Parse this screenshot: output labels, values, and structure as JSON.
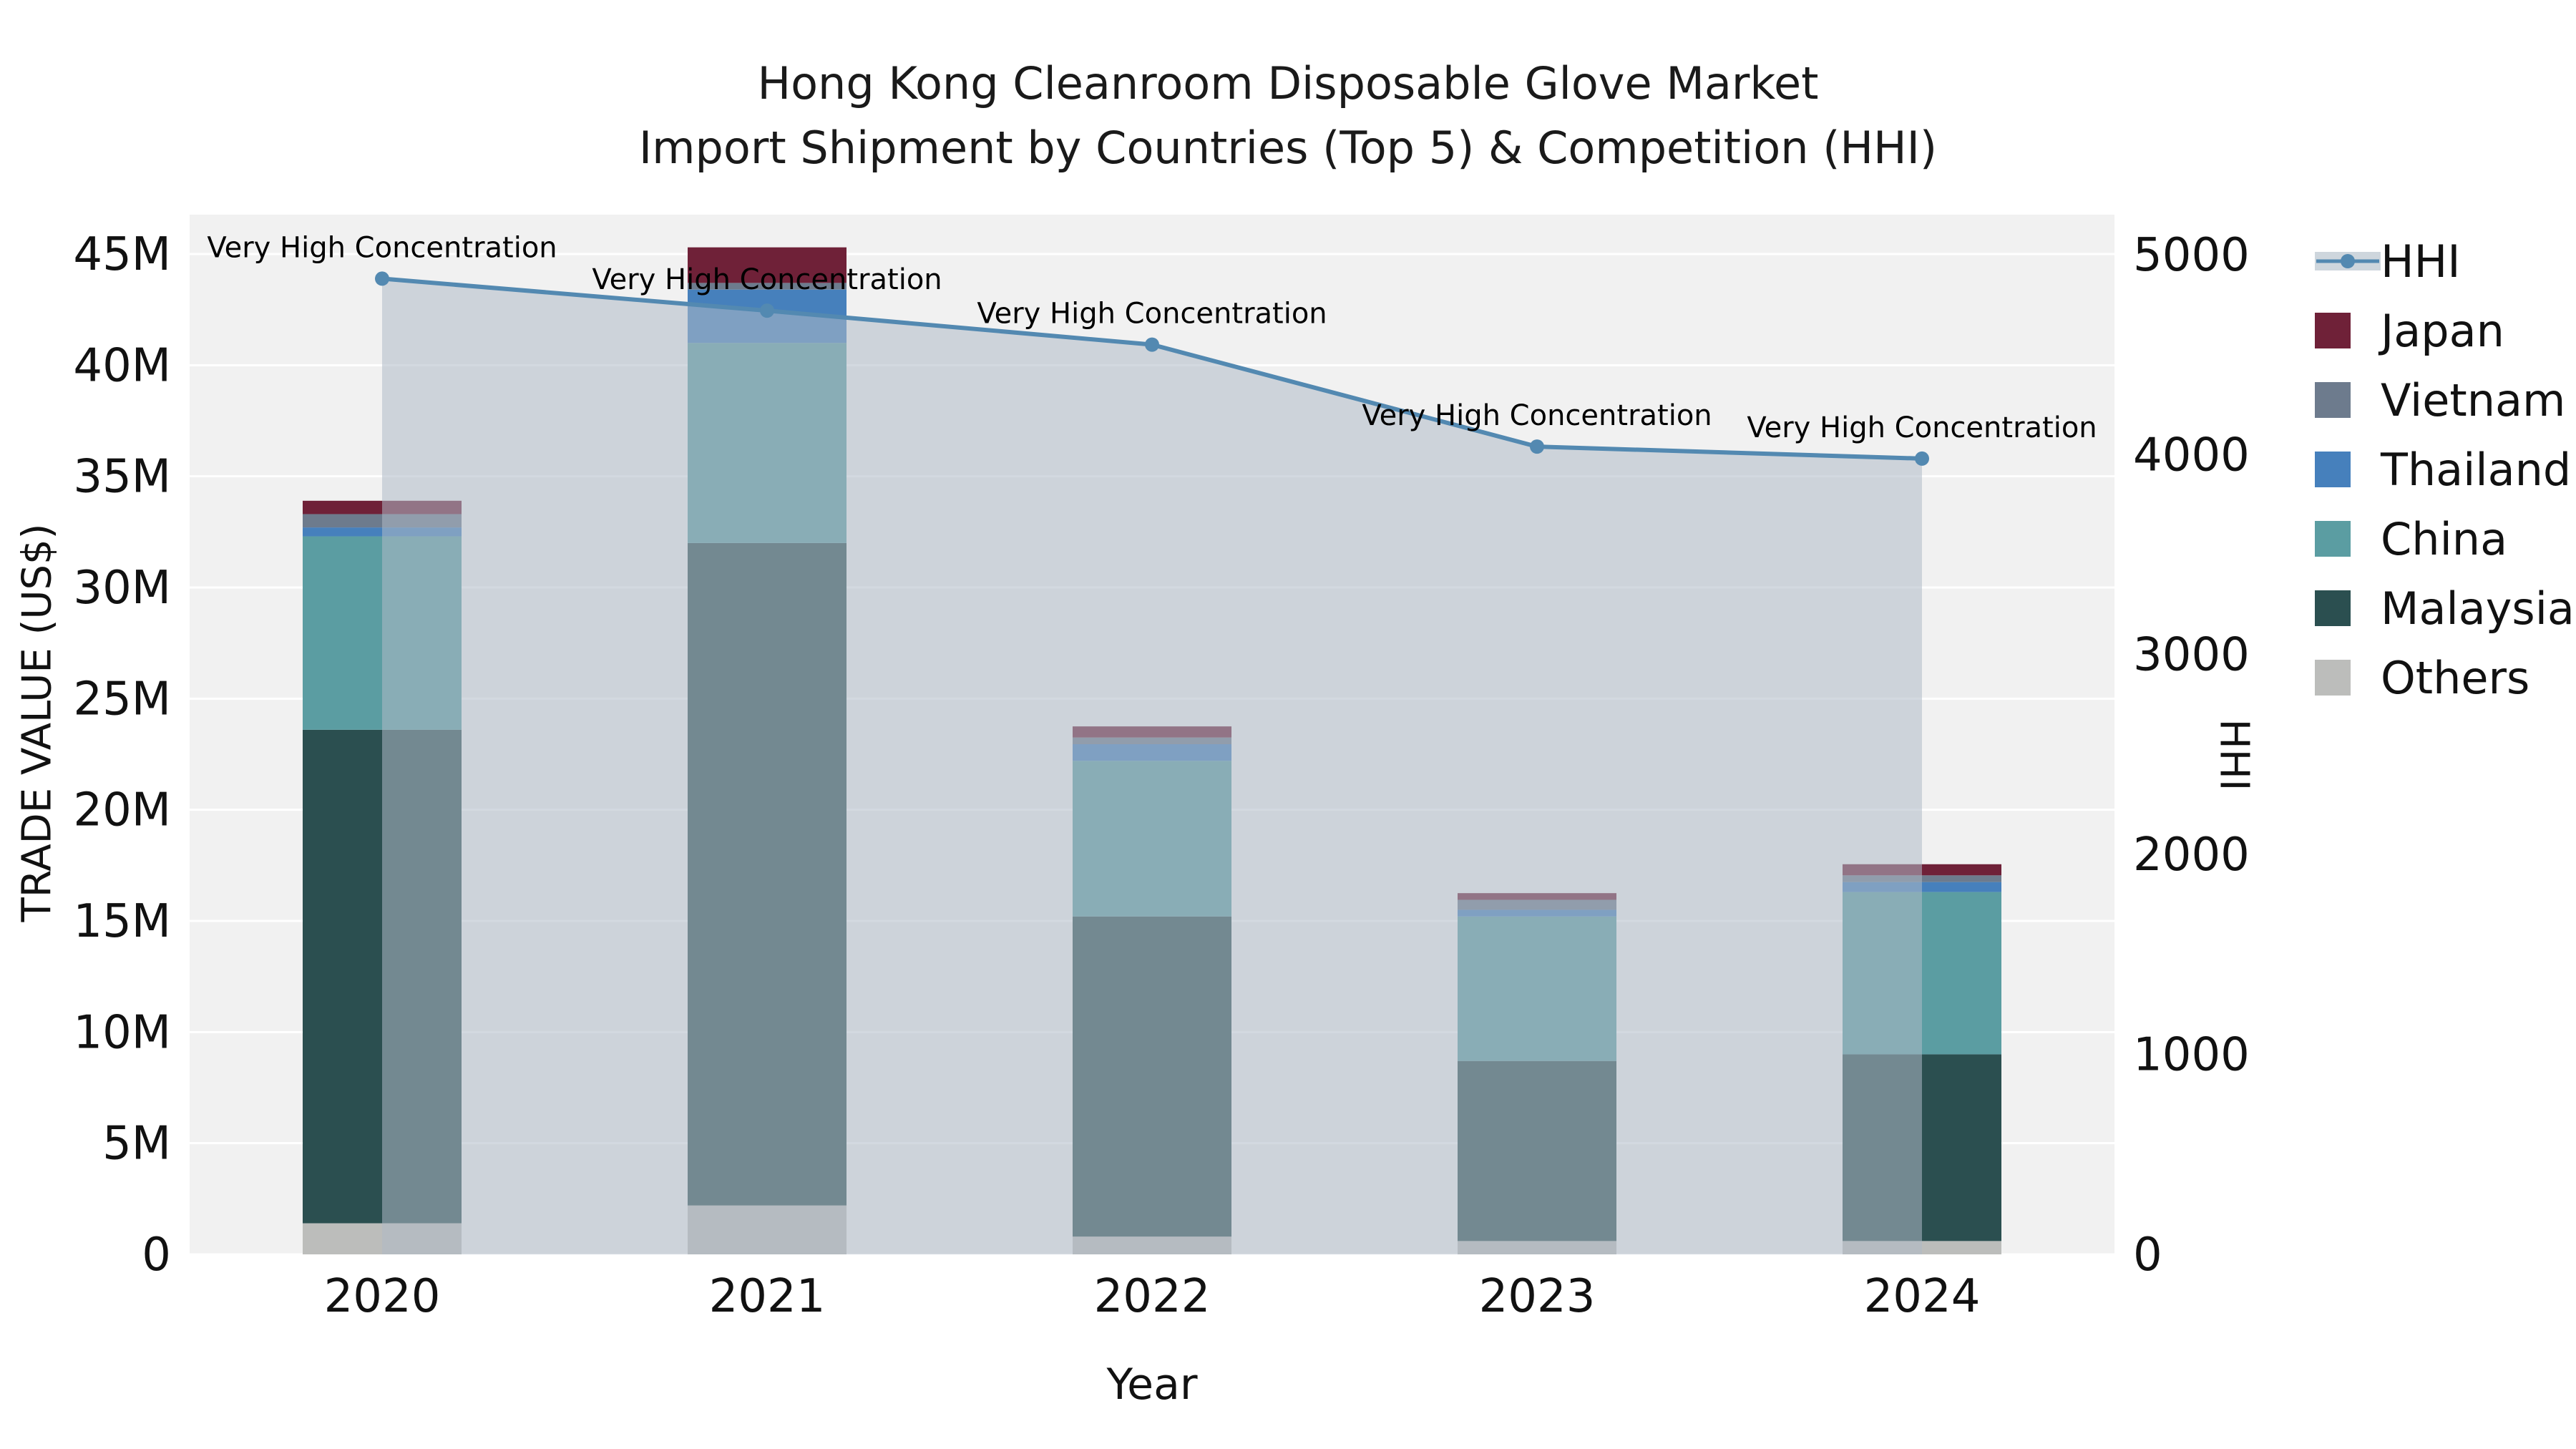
{
  "title": {
    "line1": "Hong Kong Cleanroom Disposable Glove Market",
    "line2": "Import Shipment by Countries (Top 5) & Competition (HHI)"
  },
  "chart_data": {
    "type": "bar+line",
    "x_label": "Year",
    "y_left_label": "TRADE VALUE (US$)",
    "y_right_label": "HHI",
    "categories": [
      "2020",
      "2021",
      "2022",
      "2023",
      "2024"
    ],
    "y_left_max": 46770000,
    "y_right_max": 5200,
    "plot_bg": "#f1f1f1",
    "grid_color": "#ffffff",
    "y_left_ticks": [
      {
        "value": 0,
        "label": "0"
      },
      {
        "value": 5000000,
        "label": "5M"
      },
      {
        "value": 10000000,
        "label": "10M"
      },
      {
        "value": 15000000,
        "label": "15M"
      },
      {
        "value": 20000000,
        "label": "20M"
      },
      {
        "value": 25000000,
        "label": "25M"
      },
      {
        "value": 30000000,
        "label": "30M"
      },
      {
        "value": 35000000,
        "label": "35M"
      },
      {
        "value": 40000000,
        "label": "40M"
      },
      {
        "value": 45000000,
        "label": "45M"
      }
    ],
    "y_right_ticks": [
      {
        "value": 0,
        "label": "0"
      },
      {
        "value": 1000,
        "label": "1000"
      },
      {
        "value": 2000,
        "label": "2000"
      },
      {
        "value": 3000,
        "label": "3000"
      },
      {
        "value": 4000,
        "label": "4000"
      },
      {
        "value": 5000,
        "label": "5000"
      }
    ],
    "bar_series": [
      {
        "name": "Others",
        "color": "#bcbdbb",
        "values": [
          1400000,
          2200000,
          800000,
          600000,
          600000
        ]
      },
      {
        "name": "Malaysia",
        "color": "#2b4f50",
        "values": [
          22200000,
          29800000,
          14400000,
          8100000,
          8400000
        ]
      },
      {
        "name": "China",
        "color": "#5b9da2",
        "values": [
          8700000,
          9000000,
          7000000,
          6500000,
          7300000
        ]
      },
      {
        "name": "Thailand",
        "color": "#4680bc",
        "values": [
          400000,
          2400000,
          750000,
          300000,
          450000
        ]
      },
      {
        "name": "Vietnam",
        "color": "#6d7b8d",
        "values": [
          600000,
          300000,
          300000,
          450000,
          300000
        ]
      },
      {
        "name": "Japan",
        "color": "#6f2138",
        "values": [
          600000,
          1600000,
          500000,
          300000,
          500000
        ]
      }
    ],
    "line_series": {
      "name": "HHI",
      "color": "#5389b1",
      "fill_color": "#aebac7",
      "fill_opacity": 0.55,
      "values": [
        4880,
        4720,
        4550,
        4040,
        3980
      ]
    },
    "annotations": [
      {
        "x_index": 0,
        "text": "Very High Concentration"
      },
      {
        "x_index": 1,
        "text": "Very High Concentration"
      },
      {
        "x_index": 2,
        "text": "Very High Concentration"
      },
      {
        "x_index": 3,
        "text": "Very High Concentration"
      },
      {
        "x_index": 4,
        "text": "Very High Concentration"
      }
    ],
    "legend_order": [
      "HHI",
      "Japan",
      "Vietnam",
      "Thailand",
      "China",
      "Malaysia",
      "Others"
    ]
  }
}
